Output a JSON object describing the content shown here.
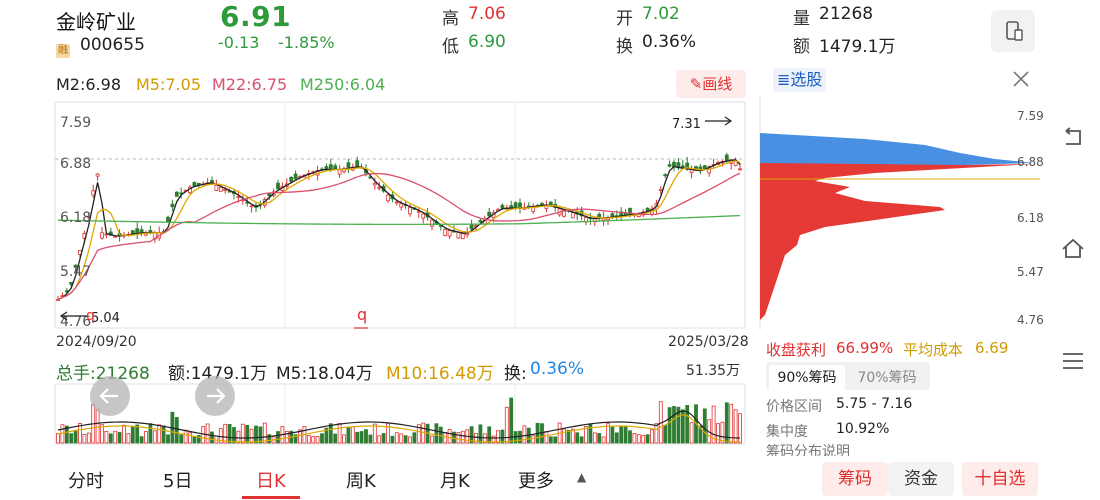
{
  "stock": {
    "name": "金岭矿业",
    "badge": "融",
    "code": "000655",
    "price": "6.91",
    "change": "-0.13",
    "change_pct": "-1.85%"
  },
  "stats": {
    "high_label": "高",
    "high": "7.06",
    "low_label": "低",
    "low": "6.90",
    "open_label": "开",
    "open": "7.02",
    "turnover_label": "换",
    "turnover": "0.36%",
    "volume_label": "量",
    "volume": "21268",
    "amount_label": "额",
    "amount": "1479.1万"
  },
  "ma": {
    "m2": "M2:6.98",
    "m5": "M5:7.05",
    "m22": "M22:6.75",
    "m250": "M250:6.04"
  },
  "draw_button": "画线",
  "price_axis": [
    "7.59",
    "6.88",
    "6.18",
    "5.47",
    "4.76"
  ],
  "date_start": "2024/09/20",
  "date_end": "2025/03/28",
  "chart_annotations": {
    "high_marker": "7.31",
    "low_marker": "5.04",
    "q_label": "q"
  },
  "volume_bar": {
    "total": "总手:21268",
    "amount": "额:1479.1万",
    "m5": "M5:18.04万",
    "m10": "M10:16.48万",
    "turnover_label": "换:",
    "turnover": "0.36%",
    "max": "51.35万"
  },
  "chip_panel": {
    "title": "选股",
    "profit_label": "收盘获利",
    "profit": "66.99%",
    "avg_cost_label": "平均成本",
    "avg_cost": "6.69",
    "tab_90": "90%筹码",
    "tab_70": "70%筹码",
    "range_label": "价格区间",
    "range": "5.75 - 7.16",
    "concentration_label": "集中度",
    "concentration": "10.92%",
    "explain": "筹码分布说明"
  },
  "tabs": [
    "分时",
    "5日",
    "日K",
    "周K",
    "月K",
    "更多"
  ],
  "bottom_buttons": {
    "chips": "筹码",
    "funds": "资金",
    "add": "十自选"
  },
  "colors": {
    "up": "#e03131",
    "down": "#2e7d32",
    "accent_red": "#e03131",
    "green_text": "#2e9a3a",
    "ma5": "#e0a800",
    "ma22": "#d9506c",
    "ma250": "#4caf50",
    "chip_blue": "#4a90e2"
  },
  "icons": {
    "phone": "phone-icon",
    "back": "back-arrow-icon",
    "home": "home-icon",
    "menu": "menu-icon",
    "close": "close-icon",
    "prev": "arrow-left-icon",
    "next": "arrow-right-icon",
    "pencil": "pencil-icon",
    "caret": "caret-up-icon"
  }
}
